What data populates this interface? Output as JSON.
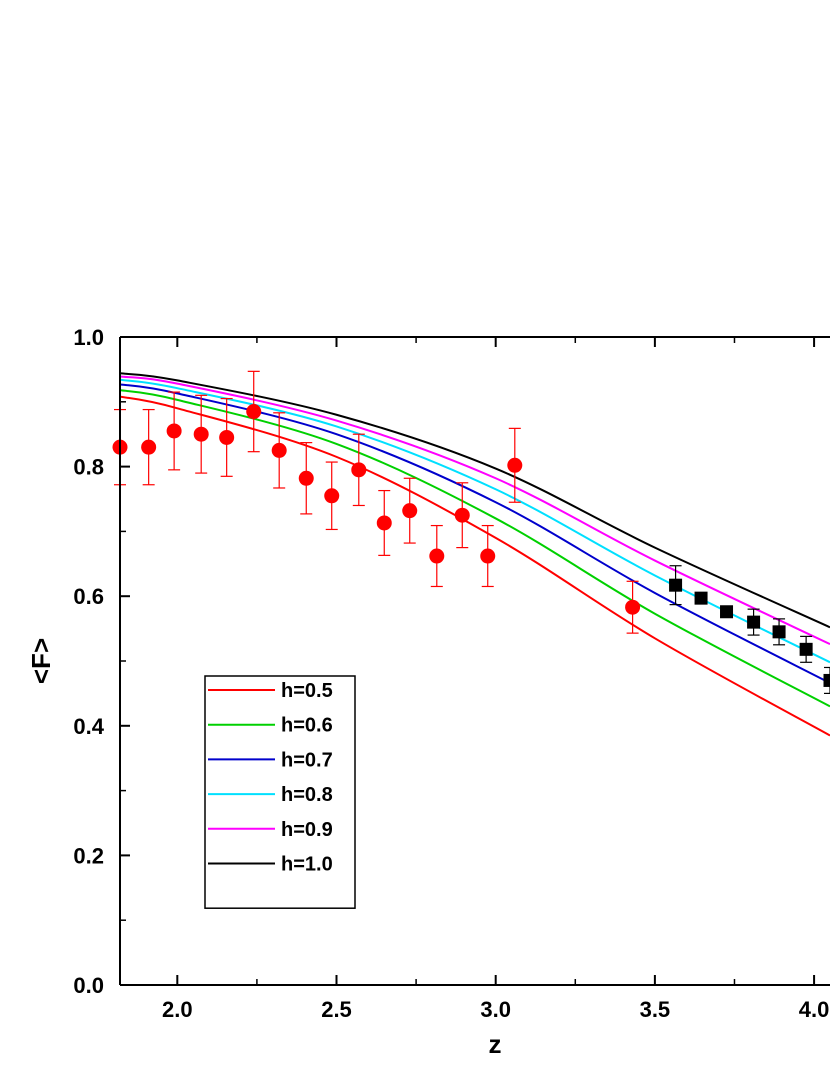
{
  "chart_data": {
    "type": "scatter",
    "xlabel": "z",
    "ylabel": "<F>",
    "xlim": [
      1.82,
      4.05
    ],
    "ylim": [
      0.0,
      1.0
    ],
    "x_ticks": [
      "2.0",
      "2.5",
      "3.0",
      "3.5",
      "4.0"
    ],
    "x_tick_values": [
      2.0,
      2.5,
      3.0,
      3.5,
      4.0
    ],
    "y_ticks": [
      "0.0",
      "0.2",
      "0.4",
      "0.6",
      "0.8",
      "1.0"
    ],
    "y_tick_values": [
      0.0,
      0.2,
      0.4,
      0.6,
      0.8,
      1.0
    ],
    "grid": false,
    "legend_position": "bottom-left",
    "lines": [
      {
        "name": "h=0.5",
        "color": "#ff0000",
        "x": [
          1.82,
          2.0,
          2.5,
          3.0,
          3.5,
          4.05
        ],
        "y": [
          0.908,
          0.89,
          0.815,
          0.69,
          0.535,
          0.385
        ]
      },
      {
        "name": "h=0.6",
        "color": "#00d000",
        "x": [
          1.82,
          2.0,
          2.5,
          3.0,
          3.5,
          4.05
        ],
        "y": [
          0.918,
          0.903,
          0.835,
          0.72,
          0.573,
          0.43
        ]
      },
      {
        "name": "h=0.7",
        "color": "#0000cc",
        "x": [
          1.82,
          2.0,
          2.5,
          3.0,
          3.5,
          4.05
        ],
        "y": [
          0.927,
          0.913,
          0.85,
          0.745,
          0.605,
          0.466
        ]
      },
      {
        "name": "h=0.8",
        "color": "#00e0ff",
        "x": [
          1.82,
          2.0,
          2.5,
          3.0,
          3.5,
          4.05
        ],
        "y": [
          0.934,
          0.921,
          0.862,
          0.765,
          0.632,
          0.498
        ]
      },
      {
        "name": "h=0.9",
        "color": "#ff00ff",
        "x": [
          1.82,
          2.0,
          2.5,
          3.0,
          3.5,
          4.05
        ],
        "y": [
          0.939,
          0.928,
          0.871,
          0.782,
          0.655,
          0.526
        ]
      },
      {
        "name": "h=1.0",
        "color": "#000000",
        "x": [
          1.82,
          2.0,
          2.5,
          3.0,
          3.5,
          4.05
        ],
        "y": [
          0.944,
          0.933,
          0.88,
          0.797,
          0.675,
          0.552
        ]
      }
    ],
    "points_circle": {
      "color": "#ff0000",
      "x": [
        1.82,
        1.91,
        1.99,
        2.075,
        2.155,
        2.24,
        2.32,
        2.405,
        2.485,
        2.57,
        2.65,
        2.73,
        2.815,
        2.895,
        2.975,
        3.06,
        3.43
      ],
      "y": [
        0.83,
        0.83,
        0.855,
        0.85,
        0.845,
        0.885,
        0.825,
        0.782,
        0.755,
        0.795,
        0.713,
        0.732,
        0.662,
        0.725,
        0.662,
        0.802,
        0.583
      ],
      "err": [
        0.058,
        0.058,
        0.06,
        0.06,
        0.06,
        0.062,
        0.058,
        0.055,
        0.052,
        0.055,
        0.05,
        0.05,
        0.047,
        0.05,
        0.047,
        0.057,
        0.04
      ]
    },
    "points_square": {
      "color": "#000000",
      "x": [
        3.565,
        3.645,
        3.725,
        3.81,
        3.89,
        3.975,
        4.05
      ],
      "y": [
        0.617,
        0.597,
        0.576,
        0.56,
        0.545,
        0.518,
        0.47
      ],
      "err": [
        0.03,
        0.0,
        0.0,
        0.02,
        0.02,
        0.02,
        0.02
      ]
    }
  }
}
